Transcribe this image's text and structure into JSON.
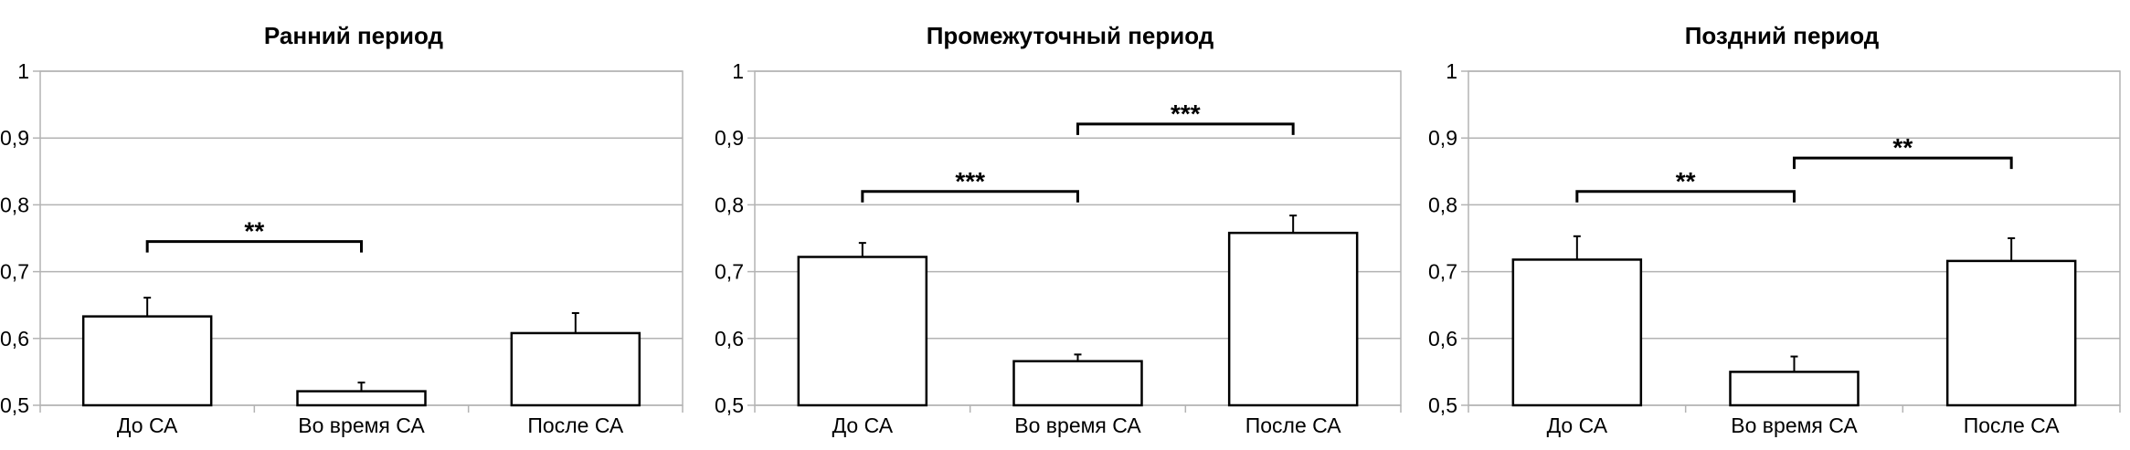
{
  "chart_data": [
    {
      "type": "bar",
      "title": "Ранний период",
      "categories": [
        "До СА",
        "Во время СА",
        "После СА"
      ],
      "values": [
        0.633,
        0.521,
        0.608
      ],
      "error": [
        0.028,
        0.013,
        0.03
      ],
      "ylim": [
        0.5,
        1
      ],
      "yticks": [
        "0,5",
        "0,6",
        "0,7",
        "0,8",
        "0,9",
        "1"
      ],
      "grid": true,
      "significance": [
        {
          "from": 0,
          "to": 1,
          "y": 0.745,
          "label": "**"
        }
      ]
    },
    {
      "type": "bar",
      "title": "Промежуточный период",
      "categories": [
        "До СА",
        "Во время СА",
        "После СА"
      ],
      "values": [
        0.722,
        0.566,
        0.758
      ],
      "error": [
        0.021,
        0.01,
        0.026
      ],
      "ylim": [
        0.5,
        1
      ],
      "yticks": [
        "0,5",
        "0,6",
        "0,7",
        "0,8",
        "0,9",
        "1"
      ],
      "grid": true,
      "significance": [
        {
          "from": 0,
          "to": 1,
          "y": 0.82,
          "label": "***"
        },
        {
          "from": 1,
          "to": 2,
          "y": 0.921,
          "label": "***"
        }
      ]
    },
    {
      "type": "bar",
      "title": "Поздний период",
      "categories": [
        "До СА",
        "Во время СА",
        "После СА"
      ],
      "values": [
        0.718,
        0.55,
        0.716
      ],
      "error": [
        0.035,
        0.023,
        0.034
      ],
      "ylim": [
        0.5,
        1
      ],
      "yticks": [
        "0,5",
        "0,6",
        "0,7",
        "0,8",
        "0,9",
        "1"
      ],
      "grid": true,
      "significance": [
        {
          "from": 0,
          "to": 1,
          "y": 0.82,
          "label": "**"
        },
        {
          "from": 1,
          "to": 2,
          "y": 0.87,
          "label": "**"
        }
      ]
    }
  ],
  "colors": {
    "bar_fill": "#ffffff",
    "bar_stroke": "#000000",
    "grid": "#b3b3b3",
    "axis": "#b3b3b3",
    "text": "#000000"
  }
}
